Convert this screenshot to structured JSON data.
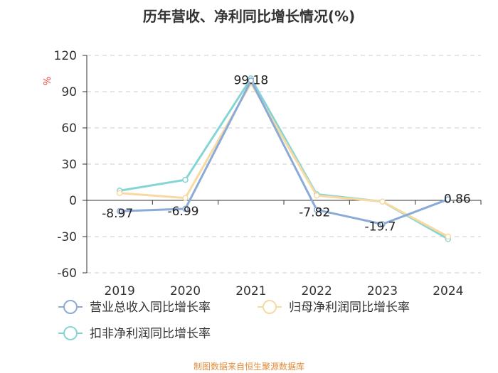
{
  "chart_data": {
    "type": "line",
    "title": "历年营收、净利同比增长情况(%)",
    "ylabel": "%",
    "xlabel": "",
    "categories": [
      "2019",
      "2020",
      "2021",
      "2022",
      "2023",
      "2024"
    ],
    "ylim": [
      -60,
      120
    ],
    "yticks": [
      -60,
      -30,
      0,
      30,
      60,
      90,
      120
    ],
    "grid": true,
    "legend_position": "bottom",
    "series": [
      {
        "name": "营业总收入同比增长率",
        "color": "#8aaad8",
        "values": [
          -8.97,
          -6.99,
          99.18,
          -7.82,
          -19.7,
          0.86
        ]
      },
      {
        "name": "归母净利润同比增长率",
        "color": "#f8d9a0",
        "values": [
          6.0,
          2.0,
          97.0,
          4.0,
          -1.0,
          -30.0
        ]
      },
      {
        "name": "扣非净利润同比增长率",
        "color": "#86d5d5",
        "values": [
          8.0,
          17.0,
          101.0,
          5.0,
          -1.0,
          -32.0
        ]
      }
    ],
    "data_labels": [
      {
        "category": "2019",
        "text": "-8.97"
      },
      {
        "category": "2020",
        "text": "-6.99"
      },
      {
        "category": "2021",
        "text": "99.18"
      },
      {
        "category": "2022",
        "text": "-7.82"
      },
      {
        "category": "2023",
        "text": "-19.7"
      },
      {
        "category": "2024",
        "text": "0.86"
      }
    ],
    "source": "制图数据来自恒生聚源数据库"
  }
}
